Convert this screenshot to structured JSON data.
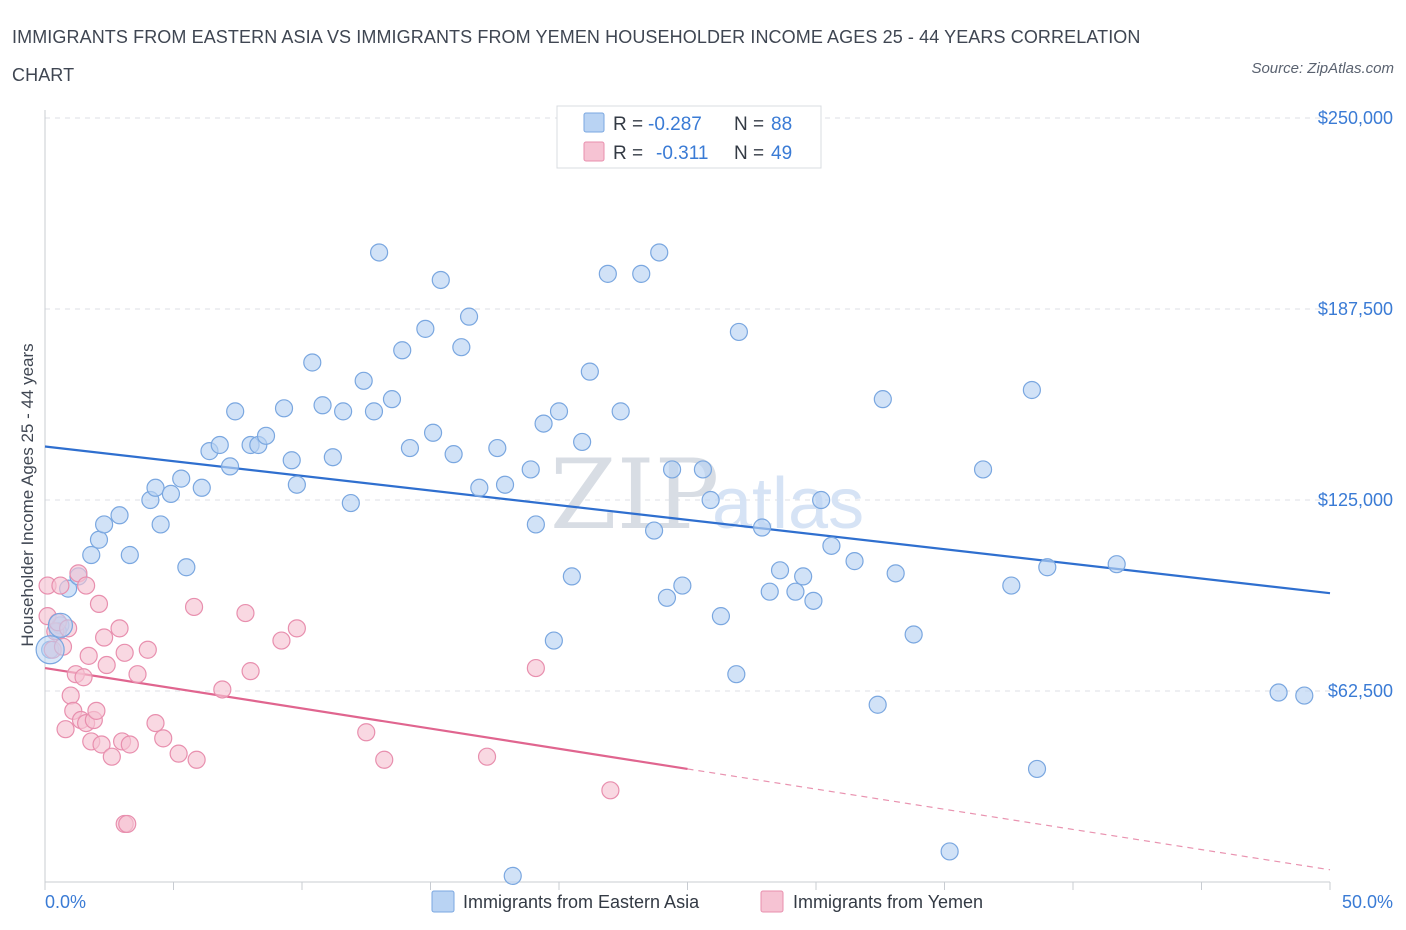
{
  "title": "IMMIGRANTS FROM EASTERN ASIA VS IMMIGRANTS FROM YEMEN HOUSEHOLDER INCOME AGES 25 - 44 YEARS CORRELATION CHART",
  "source": "Source: ZipAtlas.com",
  "watermark": {
    "zip": "ZIP",
    "atlas": "atlas"
  },
  "colors": {
    "blue_fill": "#b9d3f3",
    "blue_stroke": "#7aa7e0",
    "blue_line": "#2f6fcf",
    "pink_fill": "#f6c3d3",
    "pink_stroke": "#e88fae",
    "pink_line": "#e0658f",
    "grid": "#dcdfe4",
    "axis_text": "#3a7bd5"
  },
  "legend": {
    "rows": [
      {
        "r_label": "R =",
        "r_value": "-0.287",
        "n_label": "N =",
        "n_value": "88"
      },
      {
        "r_label": "R =",
        "r_value": "-0.311",
        "n_label": "N =",
        "n_value": "49"
      }
    ]
  },
  "bottom_legend": [
    "Immigrants from Eastern Asia",
    "Immigrants from Yemen"
  ],
  "chart_data": {
    "type": "scatter",
    "title": "IMMIGRANTS FROM EASTERN ASIA VS IMMIGRANTS FROM YEMEN HOUSEHOLDER INCOME AGES 25 - 44 YEARS CORRELATION CHART",
    "xlabel": "",
    "ylabel": "Householder Income Ages 25 - 44 years",
    "xlim": [
      0,
      50
    ],
    "ylim": [
      0,
      250000
    ],
    "x_tick_labels": [
      "0.0%",
      "50.0%"
    ],
    "y_ticks": [
      62500,
      125000,
      187500,
      250000
    ],
    "y_tick_labels": [
      "$62,500",
      "$125,000",
      "$187,500",
      "$250,000"
    ],
    "grid": true,
    "legend_position": "top-center",
    "series": [
      {
        "name": "Immigrants from Eastern Asia",
        "R": -0.287,
        "N": 88,
        "trend": {
          "x": [
            0,
            50
          ],
          "y": [
            142500,
            94500
          ]
        },
        "points": [
          [
            0.2,
            76000
          ],
          [
            0.6,
            84000
          ],
          [
            0.5,
            82000
          ],
          [
            0.9,
            96000
          ],
          [
            1.3,
            100000
          ],
          [
            1.8,
            107000
          ],
          [
            2.1,
            112000
          ],
          [
            2.3,
            117000
          ],
          [
            2.9,
            120000
          ],
          [
            3.3,
            107000
          ],
          [
            4.1,
            125000
          ],
          [
            4.3,
            129000
          ],
          [
            4.5,
            117000
          ],
          [
            4.9,
            127000
          ],
          [
            5.3,
            132000
          ],
          [
            5.5,
            103000
          ],
          [
            6.1,
            129000
          ],
          [
            6.4,
            141000
          ],
          [
            6.8,
            143000
          ],
          [
            7.2,
            136000
          ],
          [
            7.4,
            154000
          ],
          [
            8.0,
            143000
          ],
          [
            8.3,
            143000
          ],
          [
            8.6,
            146000
          ],
          [
            9.3,
            155000
          ],
          [
            9.6,
            138000
          ],
          [
            9.8,
            130000
          ],
          [
            10.4,
            170000
          ],
          [
            10.8,
            156000
          ],
          [
            11.2,
            139000
          ],
          [
            11.6,
            154000
          ],
          [
            11.9,
            124000
          ],
          [
            12.4,
            164000
          ],
          [
            12.8,
            154000
          ],
          [
            13.0,
            206000
          ],
          [
            13.5,
            158000
          ],
          [
            13.9,
            174000
          ],
          [
            14.2,
            142000
          ],
          [
            14.8,
            181000
          ],
          [
            15.1,
            147000
          ],
          [
            15.4,
            197000
          ],
          [
            15.9,
            140000
          ],
          [
            16.2,
            175000
          ],
          [
            16.5,
            185000
          ],
          [
            16.9,
            129000
          ],
          [
            17.6,
            142000
          ],
          [
            17.9,
            130000
          ],
          [
            18.9,
            135000
          ],
          [
            19.1,
            117000
          ],
          [
            19.4,
            150000
          ],
          [
            19.8,
            79000
          ],
          [
            20.0,
            154000
          ],
          [
            20.5,
            100000
          ],
          [
            20.9,
            144000
          ],
          [
            21.2,
            167000
          ],
          [
            21.9,
            199000
          ],
          [
            22.4,
            154000
          ],
          [
            23.2,
            199000
          ],
          [
            23.7,
            115000
          ],
          [
            23.9,
            206000
          ],
          [
            24.2,
            93000
          ],
          [
            24.8,
            97000
          ],
          [
            25.6,
            135000
          ],
          [
            25.9,
            125000
          ],
          [
            26.3,
            87000
          ],
          [
            26.9,
            68000
          ],
          [
            27.0,
            180000
          ],
          [
            27.9,
            116000
          ],
          [
            28.2,
            95000
          ],
          [
            28.6,
            102000
          ],
          [
            29.2,
            95000
          ],
          [
            29.5,
            100000
          ],
          [
            29.9,
            92000
          ],
          [
            30.2,
            125000
          ],
          [
            30.6,
            110000
          ],
          [
            31.5,
            105000
          ],
          [
            32.4,
            58000
          ],
          [
            32.6,
            158000
          ],
          [
            33.1,
            101000
          ],
          [
            33.8,
            81000
          ],
          [
            35.2,
            10000
          ],
          [
            36.5,
            135000
          ],
          [
            37.6,
            97000
          ],
          [
            38.4,
            161000
          ],
          [
            38.6,
            37000
          ],
          [
            39.0,
            103000
          ],
          [
            41.7,
            104000
          ],
          [
            48.0,
            62000
          ],
          [
            49.0,
            61000
          ],
          [
            18.2,
            2000
          ],
          [
            24.4,
            135000
          ]
        ]
      },
      {
        "name": "Immigrants from Yemen",
        "R": -0.311,
        "N": 49,
        "trend": {
          "x": [
            0,
            25
          ],
          "y": [
            70000,
            37000
          ]
        },
        "trend_dashed": {
          "x": [
            25,
            50
          ],
          "y": [
            37000,
            4000
          ]
        },
        "points": [
          [
            0.1,
            97000
          ],
          [
            0.1,
            87000
          ],
          [
            0.3,
            76000
          ],
          [
            0.4,
            82000
          ],
          [
            0.5,
            85000
          ],
          [
            0.6,
            97000
          ],
          [
            0.7,
            77000
          ],
          [
            0.8,
            50000
          ],
          [
            0.9,
            83000
          ],
          [
            1.0,
            61000
          ],
          [
            1.1,
            56000
          ],
          [
            1.2,
            68000
          ],
          [
            1.3,
            101000
          ],
          [
            1.4,
            53000
          ],
          [
            1.5,
            67000
          ],
          [
            1.6,
            52000
          ],
          [
            1.7,
            74000
          ],
          [
            1.8,
            46000
          ],
          [
            1.9,
            53000
          ],
          [
            2.0,
            56000
          ],
          [
            2.1,
            91000
          ],
          [
            2.2,
            45000
          ],
          [
            2.3,
            80000
          ],
          [
            2.4,
            71000
          ],
          [
            2.6,
            41000
          ],
          [
            2.9,
            83000
          ],
          [
            3.0,
            46000
          ],
          [
            3.1,
            19000
          ],
          [
            3.2,
            19000
          ],
          [
            3.3,
            45000
          ],
          [
            3.6,
            68000
          ],
          [
            4.0,
            76000
          ],
          [
            4.3,
            52000
          ],
          [
            4.6,
            47000
          ],
          [
            5.2,
            42000
          ],
          [
            5.8,
            90000
          ],
          [
            5.9,
            40000
          ],
          [
            6.9,
            63000
          ],
          [
            7.8,
            88000
          ],
          [
            8.0,
            69000
          ],
          [
            9.2,
            79000
          ],
          [
            9.8,
            83000
          ],
          [
            12.5,
            49000
          ],
          [
            13.2,
            40000
          ],
          [
            17.2,
            41000
          ],
          [
            19.1,
            70000
          ],
          [
            22.0,
            30000
          ],
          [
            1.6,
            97000
          ],
          [
            3.1,
            75000
          ]
        ]
      }
    ]
  }
}
